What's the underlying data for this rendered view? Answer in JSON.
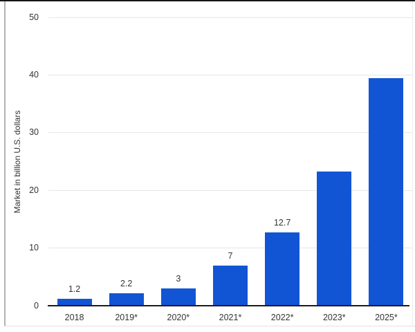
{
  "chart_data": {
    "type": "bar",
    "categories": [
      "2018",
      "2019*",
      "2020*",
      "2021*",
      "2022*",
      "2023*",
      "2025*"
    ],
    "values": [
      1.2,
      2.2,
      3,
      7,
      12.7,
      23.3,
      39.5
    ],
    "bar_labels": [
      "1.2",
      "2.2",
      "3",
      "7",
      "12.7",
      "",
      ""
    ],
    "title": "",
    "xlabel": "",
    "ylabel": "Market in billion U.S. dollars",
    "ylim": [
      0,
      50
    ],
    "yticks": [
      0,
      10,
      20,
      30,
      40,
      50
    ],
    "grid": true,
    "legend": "none",
    "colors": {
      "bar": "#1155d4",
      "grid": "#e6e6e6",
      "axis": "#1a1a1a",
      "text": "#333333",
      "frame_top": "#161616",
      "frame_left": "#b3b3b3",
      "frame_bottom": "#e3e3e3",
      "frame_right": "#ececec",
      "background": "#ffffff"
    }
  }
}
